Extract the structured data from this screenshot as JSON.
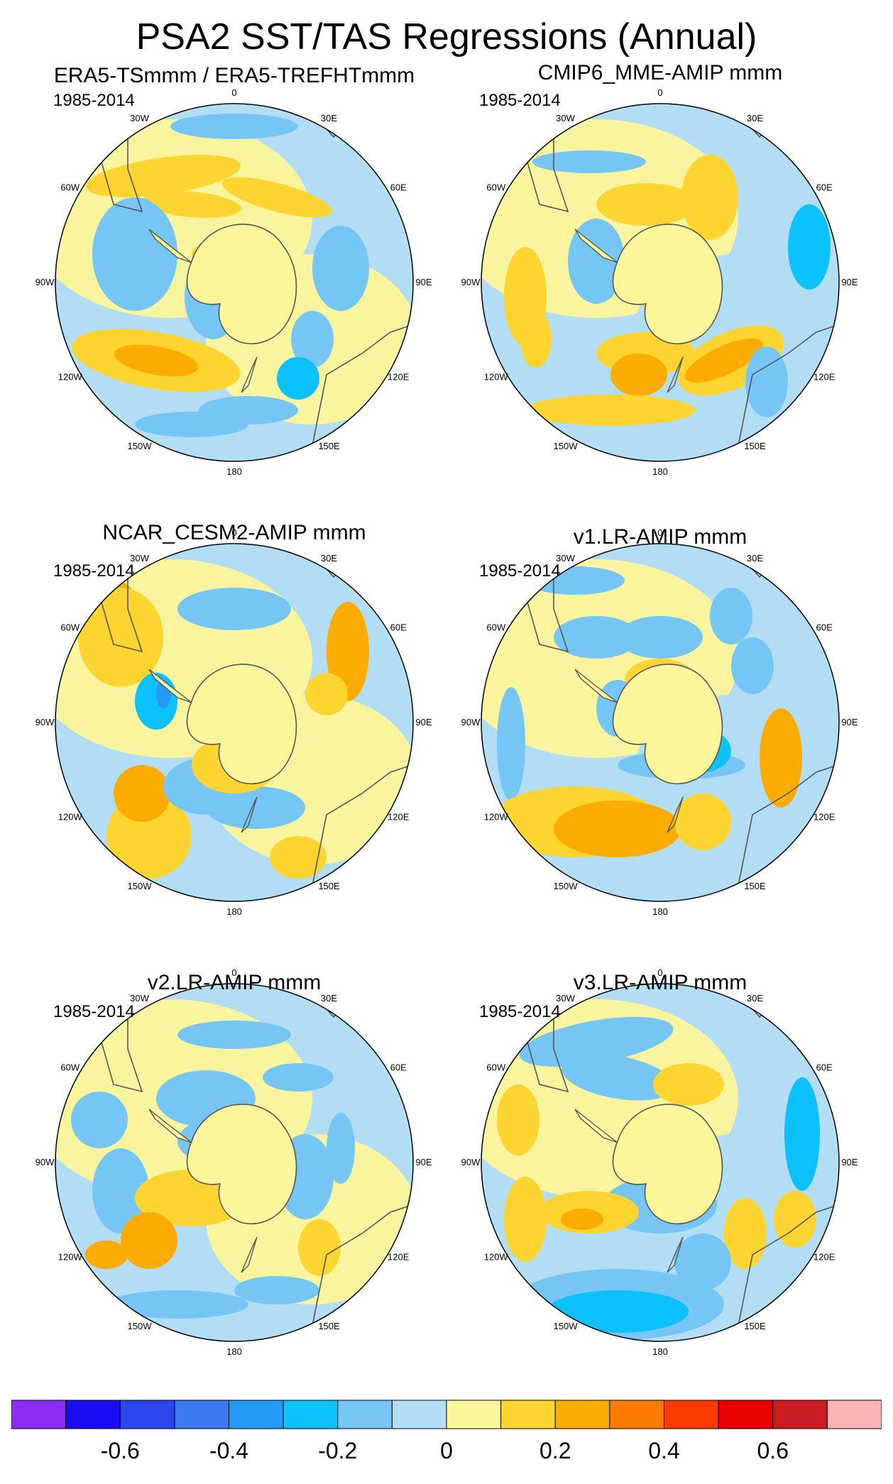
{
  "figure": {
    "title": "PSA2 SST/TAS Regressions (Annual)"
  },
  "chart_data": [
    {
      "type": "heatmap",
      "projection": "south-polar-stereographic",
      "title": "ERA5-TSmmm / ERA5-TREFHTmmm",
      "period": "1985-2014",
      "variable": "regression"
    },
    {
      "type": "heatmap",
      "projection": "south-polar-stereographic",
      "title": "CMIP6_MME-AMIP  mmm",
      "period": "1985-2014",
      "variable": "regression"
    },
    {
      "type": "heatmap",
      "projection": "south-polar-stereographic",
      "title": "NCAR_CESM2-AMIP  mmm",
      "period": "1985-2014",
      "variable": "regression"
    },
    {
      "type": "heatmap",
      "projection": "south-polar-stereographic",
      "title": "v1.LR-AMIP  mmm",
      "period": "1985-2014",
      "variable": "regression"
    },
    {
      "type": "heatmap",
      "projection": "south-polar-stereographic",
      "title": "v2.LR-AMIP  mmm",
      "period": "1985-2014",
      "variable": "regression"
    },
    {
      "type": "heatmap",
      "projection": "south-polar-stereographic",
      "title": "v3.LR-AMIP  mmm",
      "period": "1985-2014",
      "variable": "regression"
    }
  ],
  "longitude_labels": [
    "0",
    "30E",
    "60E",
    "90E",
    "120E",
    "150E",
    "180",
    "150W",
    "120W",
    "90W",
    "60W",
    "30W"
  ],
  "colorbar": {
    "levels": [
      -0.7,
      -0.6,
      -0.5,
      -0.4,
      -0.3,
      -0.2,
      -0.1,
      0,
      0.1,
      0.2,
      0.3,
      0.4,
      0.5,
      0.6,
      0.7
    ],
    "colors": [
      "#8b2cf4",
      "#1a0bf5",
      "#2b47ef",
      "#3b7af0",
      "#249af7",
      "#0cc1fb",
      "#75c6f4",
      "#b2ddf4",
      "#fdf69a",
      "#fed530",
      "#fcab00",
      "#fc7a00",
      "#fd3b00",
      "#eb0100",
      "#cc1c21",
      "#fdb4b4"
    ],
    "tick_labels": [
      "-0.6",
      "-0.4",
      "-0.2",
      "0",
      "0.2",
      "0.4",
      "0.6"
    ],
    "tick_values": [
      -0.6,
      -0.4,
      -0.2,
      0,
      0.2,
      0.4,
      0.6
    ]
  },
  "map_colors": {
    "land": "#fdf69a",
    "land_outline": "#555555",
    "coast_shadow": "#d0d0d0"
  }
}
